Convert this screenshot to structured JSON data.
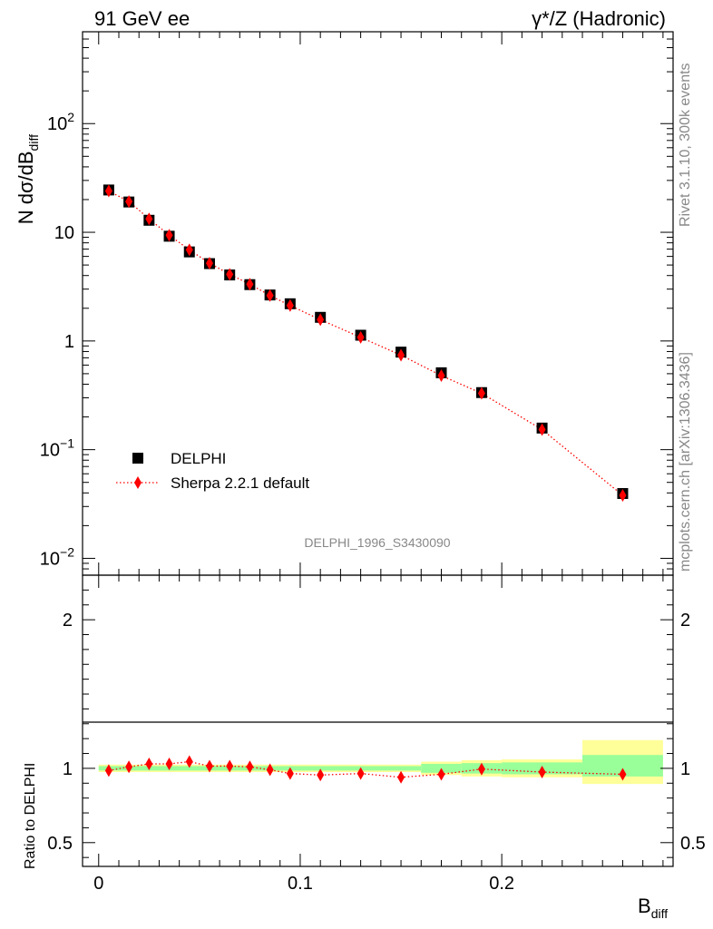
{
  "header": {
    "left": "91 GeV ee",
    "right": "γ*/Z (Hadronic)"
  },
  "side_labels": {
    "rivet": "Rivet 3.1.10,  300k events",
    "mcplots": "mcplots.cern.ch [arXiv:1306.3436]"
  },
  "analysis_id": "DELPHI_1996_S3430090",
  "colors": {
    "data": "#000000",
    "mc": "#ff0000",
    "band_inner": "#99ff99",
    "band_outer": "#ffff99"
  },
  "chart_data": [
    {
      "type": "scatter",
      "panel": "main",
      "ylabel": "N dσ/dB",
      "ylabel_sub": "diff",
      "yscale": "log",
      "ylim": [
        0.007,
        700
      ],
      "xlim": [
        -0.008,
        0.285
      ],
      "y_ticks": [
        {
          "value": 0.01,
          "base": "10",
          "exp": "−2"
        },
        {
          "value": 0.1,
          "base": "10",
          "exp": "−1"
        },
        {
          "value": 1,
          "base": "1",
          "exp": ""
        },
        {
          "value": 10,
          "base": "10",
          "exp": ""
        },
        {
          "value": 100,
          "base": "10",
          "exp": "2"
        }
      ],
      "legend": {
        "position": "center-left",
        "entries": [
          "DELPHI",
          "Sherpa 2.2.1 default"
        ]
      },
      "series": [
        {
          "name": "DELPHI",
          "marker": "square",
          "x": [
            0.005,
            0.015,
            0.025,
            0.035,
            0.045,
            0.055,
            0.065,
            0.075,
            0.085,
            0.095,
            0.11,
            0.13,
            0.15,
            0.17,
            0.19,
            0.22,
            0.26
          ],
          "y": [
            24.5,
            19.0,
            12.9,
            9.2,
            6.6,
            5.15,
            4.05,
            3.3,
            2.65,
            2.2,
            1.65,
            1.13,
            0.79,
            0.51,
            0.335,
            0.158,
            0.0395
          ]
        },
        {
          "name": "Sherpa 2.2.1 default",
          "marker": "diamond",
          "line": "dotted",
          "x": [
            0.005,
            0.015,
            0.025,
            0.035,
            0.045,
            0.055,
            0.065,
            0.075,
            0.085,
            0.095,
            0.11,
            0.13,
            0.15,
            0.17,
            0.19,
            0.22,
            0.26
          ],
          "y": [
            24.0,
            19.2,
            13.3,
            9.4,
            6.9,
            5.2,
            4.1,
            3.33,
            2.62,
            2.12,
            1.57,
            1.08,
            0.74,
            0.48,
            0.33,
            0.153,
            0.038
          ]
        }
      ]
    },
    {
      "type": "scatter",
      "panel": "ratio",
      "xlabel": "B",
      "xlabel_sub": "diff",
      "ylabel": "Ratio to DELPHI",
      "ylim": [
        0.34,
        2.3
      ],
      "xlim": [
        -0.008,
        0.285
      ],
      "x_ticks": [
        "0",
        "0.1",
        "0.2"
      ],
      "y_ticks": [
        "0.5",
        "1",
        "2"
      ],
      "bands": [
        {
          "x0": 0.0,
          "x1": 0.16,
          "inner": [
            0.985,
            1.015
          ],
          "outer": [
            0.975,
            1.025
          ]
        },
        {
          "x0": 0.16,
          "x1": 0.18,
          "inner": [
            0.97,
            1.03
          ],
          "outer": [
            0.955,
            1.045
          ]
        },
        {
          "x0": 0.18,
          "x1": 0.2,
          "inner": [
            0.965,
            1.035
          ],
          "outer": [
            0.945,
            1.055
          ]
        },
        {
          "x0": 0.2,
          "x1": 0.24,
          "inner": [
            0.96,
            1.04
          ],
          "outer": [
            0.94,
            1.06
          ]
        },
        {
          "x0": 0.24,
          "x1": 0.28,
          "inner": [
            0.945,
            1.09
          ],
          "outer": [
            0.895,
            1.19
          ]
        }
      ],
      "series": [
        {
          "name": "Sherpa 2.2.1 default",
          "marker": "diamond",
          "line": "dotted",
          "x": [
            0.005,
            0.015,
            0.025,
            0.035,
            0.045,
            0.055,
            0.065,
            0.075,
            0.085,
            0.095,
            0.11,
            0.13,
            0.15,
            0.17,
            0.19,
            0.22,
            0.26
          ],
          "y": [
            0.985,
            1.01,
            1.03,
            1.03,
            1.045,
            1.015,
            1.015,
            1.01,
            0.99,
            0.965,
            0.955,
            0.965,
            0.94,
            0.96,
            0.995,
            0.975,
            0.96
          ]
        }
      ]
    }
  ]
}
